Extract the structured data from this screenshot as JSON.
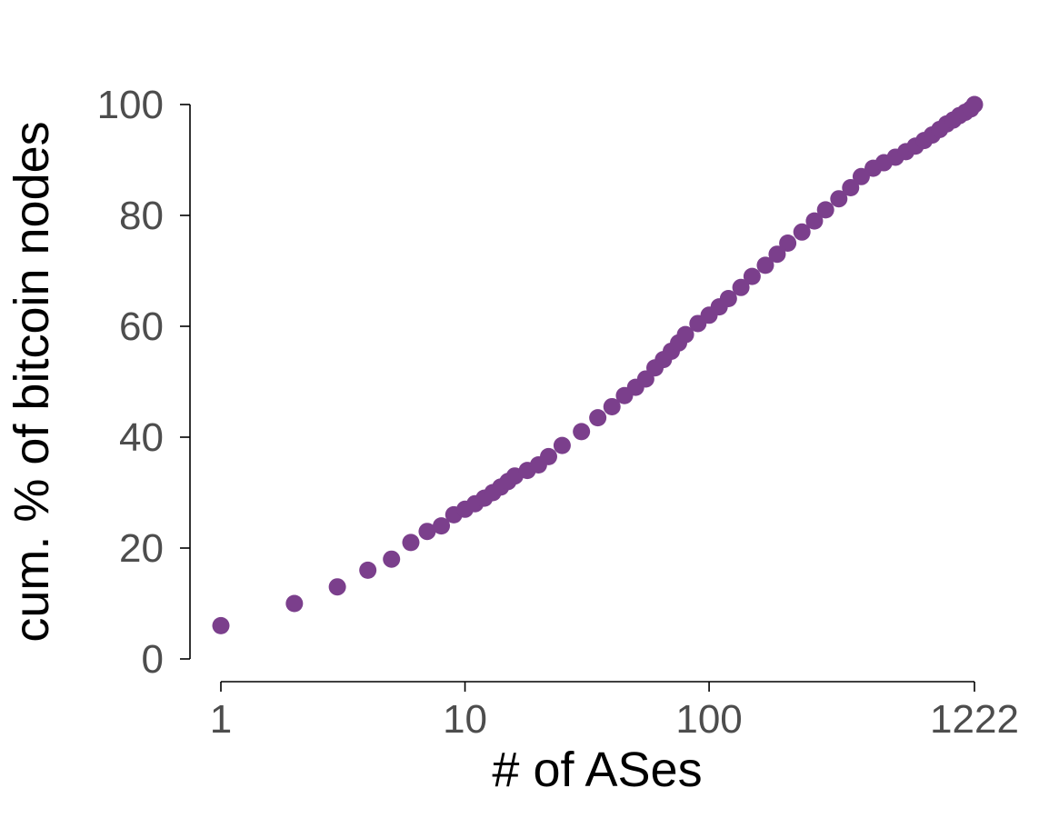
{
  "chart_data": {
    "type": "scatter",
    "title": "",
    "xlabel": "# of ASes",
    "ylabel": "cum. % of bitcoin nodes",
    "x_scale": "log",
    "xlim": [
      1,
      1222
    ],
    "ylim": [
      0,
      100
    ],
    "x_ticks": [
      1,
      10,
      100,
      1222
    ],
    "x_tick_labels": [
      "1",
      "10",
      "100",
      "1222"
    ],
    "y_ticks": [
      0,
      20,
      40,
      60,
      80,
      100
    ],
    "y_tick_labels": [
      "0",
      "20",
      "40",
      "60",
      "80",
      "100"
    ],
    "grid": false,
    "legend": "none",
    "marker_color": "#7b3f8c",
    "series": [
      {
        "points": [
          [
            1,
            6
          ],
          [
            2,
            10
          ],
          [
            3,
            13
          ],
          [
            4,
            16
          ],
          [
            5,
            18
          ],
          [
            6,
            21
          ],
          [
            7,
            23
          ],
          [
            8,
            24
          ],
          [
            9,
            26
          ],
          [
            10,
            27
          ],
          [
            11,
            28
          ],
          [
            12,
            29
          ],
          [
            13,
            30
          ],
          [
            14,
            31
          ],
          [
            15,
            32
          ],
          [
            16,
            33
          ],
          [
            18,
            34
          ],
          [
            20,
            35
          ],
          [
            22,
            36.5
          ],
          [
            25,
            38.5
          ],
          [
            30,
            41
          ],
          [
            35,
            43.5
          ],
          [
            40,
            45.5
          ],
          [
            45,
            47.5
          ],
          [
            50,
            49
          ],
          [
            55,
            50.5
          ],
          [
            60,
            52.5
          ],
          [
            65,
            54
          ],
          [
            70,
            55.5
          ],
          [
            75,
            57
          ],
          [
            80,
            58.5
          ],
          [
            90,
            60.5
          ],
          [
            100,
            62
          ],
          [
            110,
            63.5
          ],
          [
            120,
            65
          ],
          [
            135,
            67
          ],
          [
            150,
            69
          ],
          [
            170,
            71
          ],
          [
            190,
            73
          ],
          [
            210,
            75
          ],
          [
            240,
            77
          ],
          [
            270,
            79
          ],
          [
            300,
            81
          ],
          [
            340,
            83
          ],
          [
            380,
            85
          ],
          [
            420,
            87
          ],
          [
            470,
            88.5
          ],
          [
            520,
            89.5
          ],
          [
            580,
            90.5
          ],
          [
            640,
            91.5
          ],
          [
            700,
            92.5
          ],
          [
            760,
            93.5
          ],
          [
            820,
            94.5
          ],
          [
            880,
            95.5
          ],
          [
            940,
            96.5
          ],
          [
            1000,
            97.2
          ],
          [
            1060,
            98
          ],
          [
            1120,
            98.6
          ],
          [
            1180,
            99.2
          ],
          [
            1222,
            100
          ]
        ]
      }
    ]
  }
}
